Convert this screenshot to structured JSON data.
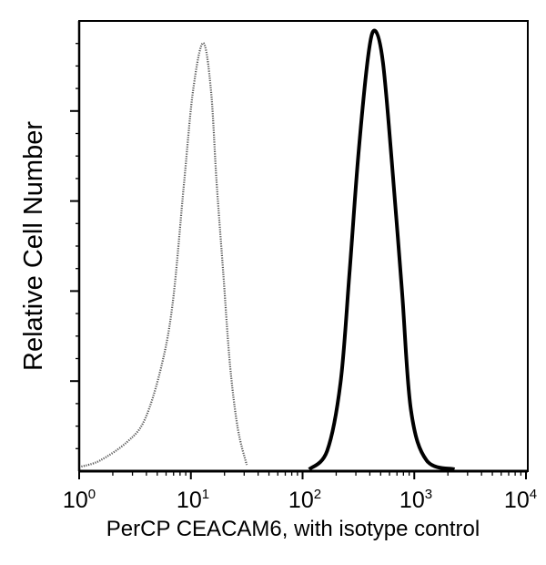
{
  "chart_data": {
    "type": "line",
    "title": "",
    "xlabel": "PerCP CEACAM6, with isotype control",
    "ylabel": "Relative Cell Number",
    "x_scale": "log10",
    "xlim": [
      1,
      10000
    ],
    "ylim": [
      0,
      100
    ],
    "grid": false,
    "legend": null,
    "x_ticks": [
      {
        "base": "10",
        "exp": "0",
        "value": 1
      },
      {
        "base": "10",
        "exp": "1",
        "value": 10
      },
      {
        "base": "10",
        "exp": "2",
        "value": 100
      },
      {
        "base": "10",
        "exp": "3",
        "value": 1000
      },
      {
        "base": "10",
        "exp": "4",
        "value": 10000
      }
    ],
    "y_ticks_unlabeled": [
      0,
      20,
      40,
      60,
      80
    ],
    "series": [
      {
        "name": "Isotype control",
        "style": "dotted-light",
        "color": "#555555",
        "log10_x": [
          0.02,
          0.19,
          0.43,
          0.59,
          0.74,
          0.84,
          0.94,
          1.02,
          1.11,
          1.18,
          1.23,
          1.29,
          1.35,
          1.42,
          1.5
        ],
        "values": [
          1.0,
          2.4,
          6.5,
          11.6,
          23.7,
          37.9,
          64.3,
          84.6,
          95.1,
          84.6,
          64.3,
          44.0,
          23.7,
          9.5,
          1.4
        ]
      },
      {
        "name": "PerCP CEACAM6",
        "style": "solid-dark",
        "color": "#000000",
        "log10_x": [
          2.06,
          2.22,
          2.34,
          2.42,
          2.5,
          2.59,
          2.65,
          2.72,
          2.8,
          2.89,
          2.97,
          3.11,
          3.36
        ],
        "values": [
          0.4,
          4.5,
          19.7,
          44.0,
          70.4,
          92.7,
          97.8,
          90.7,
          68.4,
          40.0,
          13.6,
          2.4,
          0.4
        ]
      }
    ],
    "annotations": []
  },
  "axes": {
    "xlabel": "PerCP CEACAM6, with isotype control",
    "ylabel": "Relative Cell Number",
    "x_tick_labels": [
      {
        "base": "10",
        "exp": "0"
      },
      {
        "base": "10",
        "exp": "1"
      },
      {
        "base": "10",
        "exp": "2"
      },
      {
        "base": "10",
        "exp": "3"
      },
      {
        "base": "10",
        "exp": "4"
      }
    ]
  }
}
